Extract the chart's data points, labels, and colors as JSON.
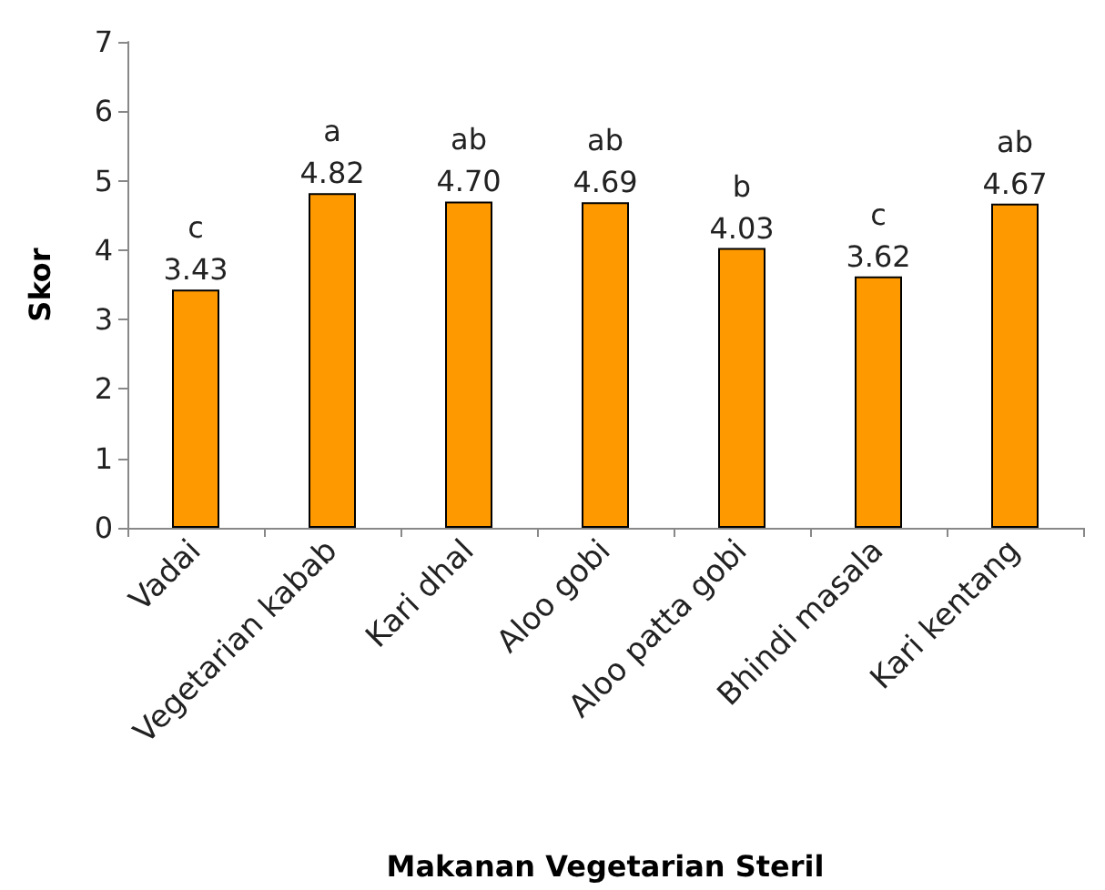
{
  "chart_data": {
    "type": "bar",
    "xlabel": "Makanan Vegetarian Steril",
    "ylabel": "Skor",
    "categories": [
      "Vadai",
      "Vegetarian kabab",
      "Kari dhal",
      "Aloo gobi",
      "Aloo patta gobi",
      "Bhindi masala",
      "Kari kentang"
    ],
    "values": [
      3.43,
      4.82,
      4.7,
      4.69,
      4.03,
      3.62,
      4.67
    ],
    "value_labels": [
      "3.43",
      "4.82",
      "4.70",
      "4.69",
      "4.03",
      "3.62",
      "4.67"
    ],
    "color": "#ff9900",
    "ylim": [
      0,
      7
    ],
    "yticks": [
      0,
      1,
      2,
      3,
      4,
      5,
      6,
      7
    ],
    "annotations": [
      {
        "text": "c",
        "x": "Vadai",
        "y": 3.43
      },
      {
        "text": "a",
        "x": "Vegetarian kabab",
        "y": 4.82
      },
      {
        "text": "ab",
        "x": "Kari dhal",
        "y": 4.7
      },
      {
        "text": "ab",
        "x": "Aloo gobi",
        "y": 4.69
      },
      {
        "text": "b",
        "x": "Aloo patta gobi",
        "y": 4.03
      },
      {
        "text": "c",
        "x": "Bhindi masala",
        "y": 3.62
      },
      {
        "text": "ab",
        "x": "Kari kentang",
        "y": 4.67
      }
    ]
  }
}
